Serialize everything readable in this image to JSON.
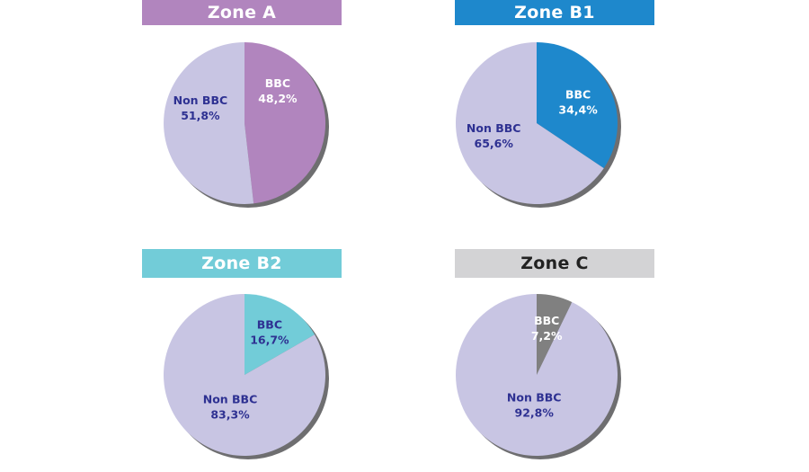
{
  "colors": {
    "non_bbc_fill": "#c8c5e3",
    "label_dark": "#2e3192",
    "label_light": "#ffffff",
    "rim_shadow": "#6e6e70"
  },
  "chart_data": [
    {
      "type": "pie",
      "title": "Zone A",
      "header_color": "#b185be",
      "header_text_color": "#ffffff",
      "slices": [
        {
          "label": "BBC",
          "value": 48.2,
          "display": "48,2%",
          "color": "#b185be",
          "text_color": "#ffffff"
        },
        {
          "label": "Non BBC",
          "value": 51.8,
          "display": "51,8%",
          "color": "#c8c5e3",
          "text_color": "#2e3192"
        }
      ]
    },
    {
      "type": "pie",
      "title": "Zone B1",
      "header_color": "#1e88cc",
      "header_text_color": "#ffffff",
      "slices": [
        {
          "label": "BBC",
          "value": 34.4,
          "display": "34,4%",
          "color": "#1e88cc",
          "text_color": "#ffffff"
        },
        {
          "label": "Non BBC",
          "value": 65.6,
          "display": "65,6%",
          "color": "#c8c5e3",
          "text_color": "#2e3192"
        }
      ]
    },
    {
      "type": "pie",
      "title": "Zone B2",
      "header_color": "#72ccd8",
      "header_text_color": "#ffffff",
      "slices": [
        {
          "label": "BBC",
          "value": 16.7,
          "display": "16,7%",
          "color": "#72ccd8",
          "text_color": "#2e3192"
        },
        {
          "label": "Non BBC",
          "value": 83.3,
          "display": "83,3%",
          "color": "#c8c5e3",
          "text_color": "#2e3192"
        }
      ]
    },
    {
      "type": "pie",
      "title": "Zone C",
      "header_color": "#d3d3d5",
      "header_text_color": "#222222",
      "slices": [
        {
          "label": "BBC",
          "value": 7.2,
          "display": "7,2%",
          "color": "#808080",
          "text_color": "#ffffff"
        },
        {
          "label": "Non BBC",
          "value": 92.8,
          "display": "92,8%",
          "color": "#c8c5e3",
          "text_color": "#2e3192"
        }
      ]
    }
  ]
}
